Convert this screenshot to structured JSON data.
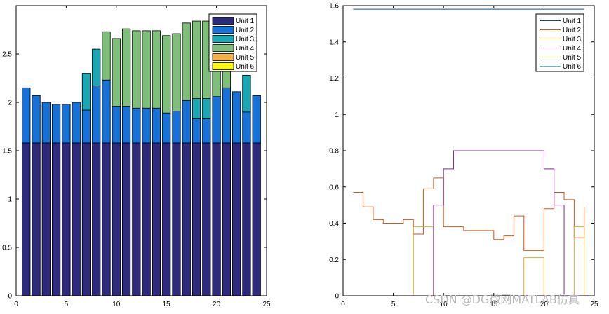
{
  "chart_data": [
    {
      "type": "bar",
      "stacked": true,
      "xlim": [
        0,
        25
      ],
      "ylim": [
        0,
        3
      ],
      "xticks": [
        "0",
        "5",
        "10",
        "15",
        "20",
        "25"
      ],
      "yticks": [
        "0",
        "0.5",
        "1",
        "1.5",
        "2",
        "2.5"
      ],
      "categories": [
        1,
        2,
        3,
        4,
        5,
        6,
        7,
        8,
        9,
        10,
        11,
        12,
        13,
        14,
        15,
        16,
        17,
        18,
        19,
        20,
        21,
        22,
        23,
        24
      ],
      "legend_position": "top-right",
      "series": [
        {
          "name": "Unit 1",
          "color": "#2e2a7e",
          "values": [
            1.58,
            1.58,
            1.58,
            1.58,
            1.58,
            1.58,
            1.58,
            1.58,
            1.58,
            1.58,
            1.58,
            1.58,
            1.58,
            1.58,
            1.58,
            1.58,
            1.58,
            1.58,
            1.58,
            1.58,
            1.58,
            1.58,
            1.58,
            1.58
          ]
        },
        {
          "name": "Unit 2",
          "color": "#1672d8",
          "values": [
            0.57,
            0.49,
            0.42,
            0.4,
            0.4,
            0.42,
            0.34,
            0.59,
            0.65,
            0.38,
            0.38,
            0.36,
            0.36,
            0.36,
            0.31,
            0.33,
            0.44,
            0.25,
            0.25,
            0.48,
            0.57,
            0.53,
            0.32,
            0.49
          ]
        },
        {
          "name": "Unit 3",
          "color": "#1aa7b4",
          "values": [
            0,
            0,
            0,
            0,
            0,
            0,
            0.38,
            0.38,
            0,
            0,
            0,
            0,
            0,
            0,
            0,
            0,
            0,
            0.21,
            0.21,
            0,
            0,
            0,
            0.38,
            0
          ]
        },
        {
          "name": "Unit 4",
          "color": "#7ec07a",
          "values": [
            0,
            0,
            0,
            0,
            0,
            0,
            0,
            0,
            0.5,
            0.7,
            0.8,
            0.8,
            0.8,
            0.8,
            0.8,
            0.8,
            0.8,
            0.8,
            0.8,
            0.7,
            0.5,
            0,
            0,
            0
          ]
        },
        {
          "name": "Unit 5",
          "color": "#f3b24c",
          "values": [
            0,
            0,
            0,
            0,
            0,
            0,
            0,
            0,
            0,
            0,
            0,
            0,
            0,
            0,
            0,
            0,
            0,
            0,
            0,
            0,
            0,
            0,
            0,
            0
          ]
        },
        {
          "name": "Unit 6",
          "color": "#f7f70f",
          "values": [
            0,
            0,
            0,
            0,
            0,
            0,
            0,
            0,
            0,
            0,
            0,
            0,
            0,
            0,
            0,
            0,
            0,
            0,
            0,
            0,
            0,
            0,
            0,
            0
          ]
        }
      ]
    },
    {
      "type": "line",
      "step": true,
      "xlim": [
        0,
        25
      ],
      "ylim": [
        0,
        1.6
      ],
      "xticks": [
        "0",
        "5",
        "10",
        "15",
        "20",
        "25"
      ],
      "yticks": [
        "0",
        "0.2",
        "0.4",
        "0.6",
        "0.8",
        "1",
        "1.2",
        "1.4",
        "1.6"
      ],
      "x": [
        1,
        2,
        3,
        4,
        5,
        6,
        7,
        8,
        9,
        10,
        11,
        12,
        13,
        14,
        15,
        16,
        17,
        18,
        19,
        20,
        21,
        22,
        23,
        24
      ],
      "legend_position": "top-right",
      "series": [
        {
          "name": "Unit 1",
          "color": "#0b4f8f",
          "values": [
            1.58,
            1.58,
            1.58,
            1.58,
            1.58,
            1.58,
            1.58,
            1.58,
            1.58,
            1.58,
            1.58,
            1.58,
            1.58,
            1.58,
            1.58,
            1.58,
            1.58,
            1.58,
            1.58,
            1.58,
            1.58,
            1.58,
            1.58,
            1.58
          ]
        },
        {
          "name": "Unit 2",
          "color": "#d2561a",
          "values": [
            0.57,
            0.49,
            0.42,
            0.4,
            0.4,
            0.42,
            0.34,
            0.59,
            0.65,
            0.38,
            0.38,
            0.36,
            0.36,
            0.36,
            0.31,
            0.33,
            0.44,
            0.25,
            0.25,
            0.48,
            0.57,
            0.53,
            0.32,
            0.49
          ]
        },
        {
          "name": "Unit 3",
          "color": "#e5a926",
          "values": [
            0,
            0,
            0,
            0,
            0,
            0,
            0.38,
            0.38,
            0,
            0,
            0,
            0,
            0,
            0,
            0,
            0,
            0,
            0.21,
            0.21,
            0,
            0,
            0,
            0.38,
            0
          ]
        },
        {
          "name": "Unit 4",
          "color": "#7e2f8e",
          "values": [
            0,
            0,
            0,
            0,
            0,
            0,
            0,
            0,
            0.5,
            0.7,
            0.8,
            0.8,
            0.8,
            0.8,
            0.8,
            0.8,
            0.8,
            0.8,
            0.8,
            0.7,
            0.5,
            0,
            0,
            0
          ]
        },
        {
          "name": "Unit 5",
          "color": "#77ac30",
          "values": [
            0,
            0,
            0,
            0,
            0,
            0,
            0,
            0,
            0,
            0,
            0,
            0,
            0,
            0,
            0,
            0,
            0,
            0,
            0,
            0,
            0,
            0,
            0,
            0
          ]
        },
        {
          "name": "Unit 6",
          "color": "#4dbeee",
          "values": [
            0,
            0,
            0,
            0,
            0,
            0,
            0,
            0,
            0,
            0,
            0,
            0,
            0,
            0,
            0,
            0,
            0,
            0,
            0,
            0,
            0,
            0,
            0,
            0
          ]
        }
      ]
    }
  ],
  "watermark": "CSDN @DG微网MATLAB仿真"
}
